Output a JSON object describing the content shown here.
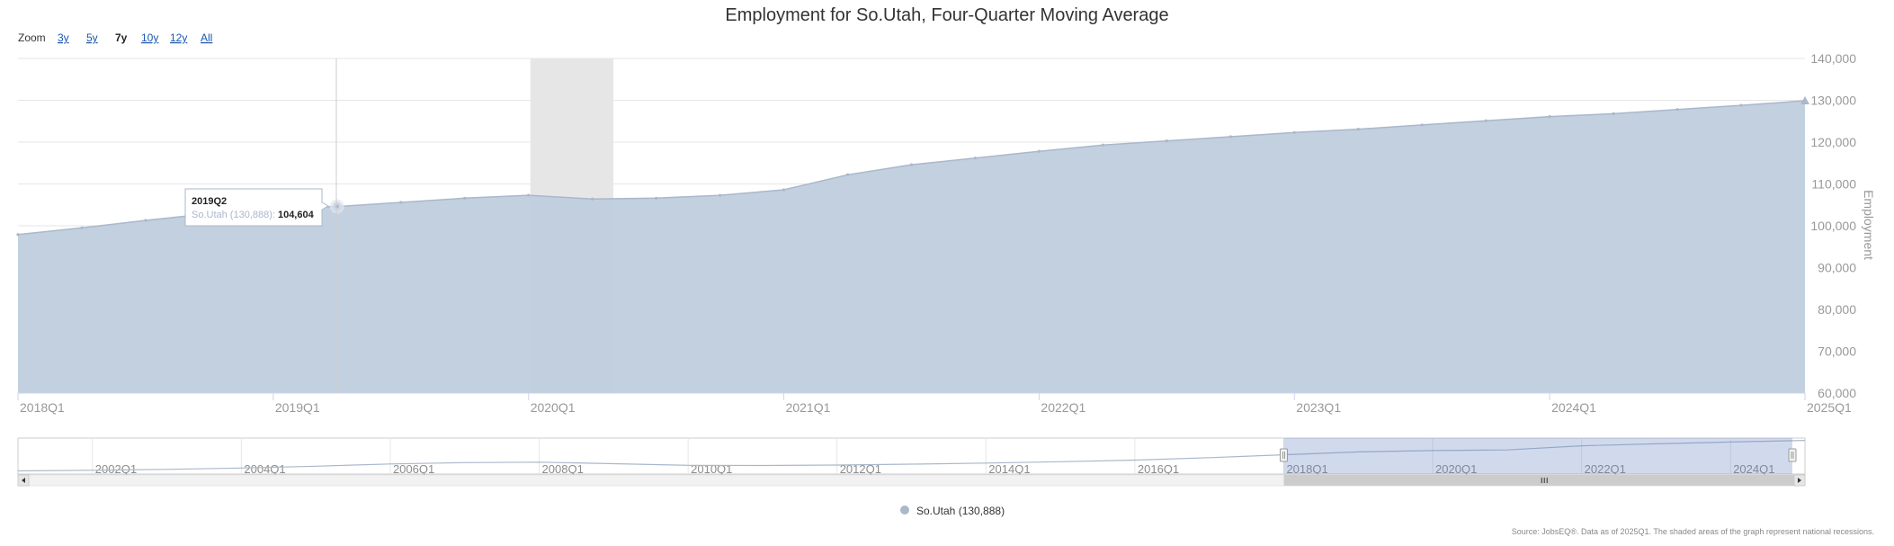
{
  "zoom": {
    "label": "Zoom",
    "buttons": [
      {
        "label": "3y",
        "active": false
      },
      {
        "label": "5y",
        "active": false
      },
      {
        "label": "7y",
        "active": true
      },
      {
        "label": "10y",
        "active": false
      },
      {
        "label": "12y",
        "active": false
      },
      {
        "label": "All",
        "active": false
      }
    ]
  },
  "tooltip": {
    "title": "2019Q2",
    "series_label": "So.Utah (130,888):",
    "value_label": "104,604"
  },
  "legend": {
    "label": "So.Utah (130,888)"
  },
  "source": "Source: JobsEQ®. Data as of 2025Q1. The shaded areas of the graph represent national recessions.",
  "colors": {
    "area": "#bfcddd",
    "line": "#a9b8cb",
    "recession": "#e6e6e6",
    "navigator_mask": "rgba(102,133,194,0.3)"
  },
  "chart_data": {
    "type": "area",
    "title": "Employment for So.Utah, Four-Quarter Moving Average",
    "ylabel": "Employment",
    "xlabel": "",
    "ylim": [
      60000,
      140000
    ],
    "yticks": [
      "60,000",
      "70,000",
      "80,000",
      "90,000",
      "100,000",
      "110,000",
      "120,000",
      "130,000",
      "140,000"
    ],
    "xticks": [
      "2018Q1",
      "2019Q1",
      "2020Q1",
      "2021Q1",
      "2022Q1",
      "2023Q1",
      "2024Q1",
      "2025Q1"
    ],
    "grid": true,
    "recessions": [
      {
        "start": "2020Q1",
        "end": "2020Q2"
      }
    ],
    "series": [
      {
        "name": "So.Utah (130,888)",
        "x": [
          "2018Q1",
          "2018Q2",
          "2018Q3",
          "2018Q4",
          "2019Q1",
          "2019Q2",
          "2019Q3",
          "2019Q4",
          "2020Q1",
          "2020Q2",
          "2020Q3",
          "2020Q4",
          "2021Q1",
          "2021Q2",
          "2021Q3",
          "2021Q4",
          "2022Q1",
          "2022Q2",
          "2022Q3",
          "2022Q4",
          "2023Q1",
          "2023Q2",
          "2023Q3",
          "2023Q4",
          "2024Q1",
          "2024Q2",
          "2024Q3",
          "2024Q4",
          "2025Q1"
        ],
        "values": [
          97900,
          99500,
          101300,
          102900,
          104100,
          104604,
          105600,
          106600,
          107300,
          106400,
          106600,
          107300,
          108600,
          112200,
          114600,
          116200,
          117800,
          119300,
          120300,
          121300,
          122300,
          123100,
          124100,
          125100,
          126100,
          126800,
          127800,
          128800,
          129900
        ]
      }
    ],
    "navigator": {
      "xticks": [
        "2002Q1",
        "2004Q1",
        "2006Q1",
        "2008Q1",
        "2010Q1",
        "2012Q1",
        "2014Q1",
        "2016Q1",
        "2018Q1",
        "2020Q1",
        "2022Q1",
        "2024Q1"
      ],
      "x": [
        "2001Q1",
        "2002Q1",
        "2003Q1",
        "2004Q1",
        "2005Q1",
        "2006Q1",
        "2007Q1",
        "2008Q1",
        "2009Q1",
        "2010Q1",
        "2011Q1",
        "2012Q1",
        "2013Q1",
        "2014Q1",
        "2015Q1",
        "2016Q1",
        "2017Q1",
        "2018Q1",
        "2019Q1",
        "2020Q1",
        "2021Q1",
        "2022Q1",
        "2023Q1",
        "2024Q1",
        "2025Q1"
      ],
      "values": [
        62000,
        63500,
        65500,
        68500,
        72500,
        77500,
        80500,
        81500,
        78000,
        74500,
        74000,
        75000,
        77000,
        79500,
        82500,
        86000,
        91500,
        97900,
        104100,
        107300,
        108600,
        117800,
        122300,
        126100,
        129900
      ],
      "selected_range": [
        "2018Q1",
        "2025Q1"
      ]
    }
  }
}
